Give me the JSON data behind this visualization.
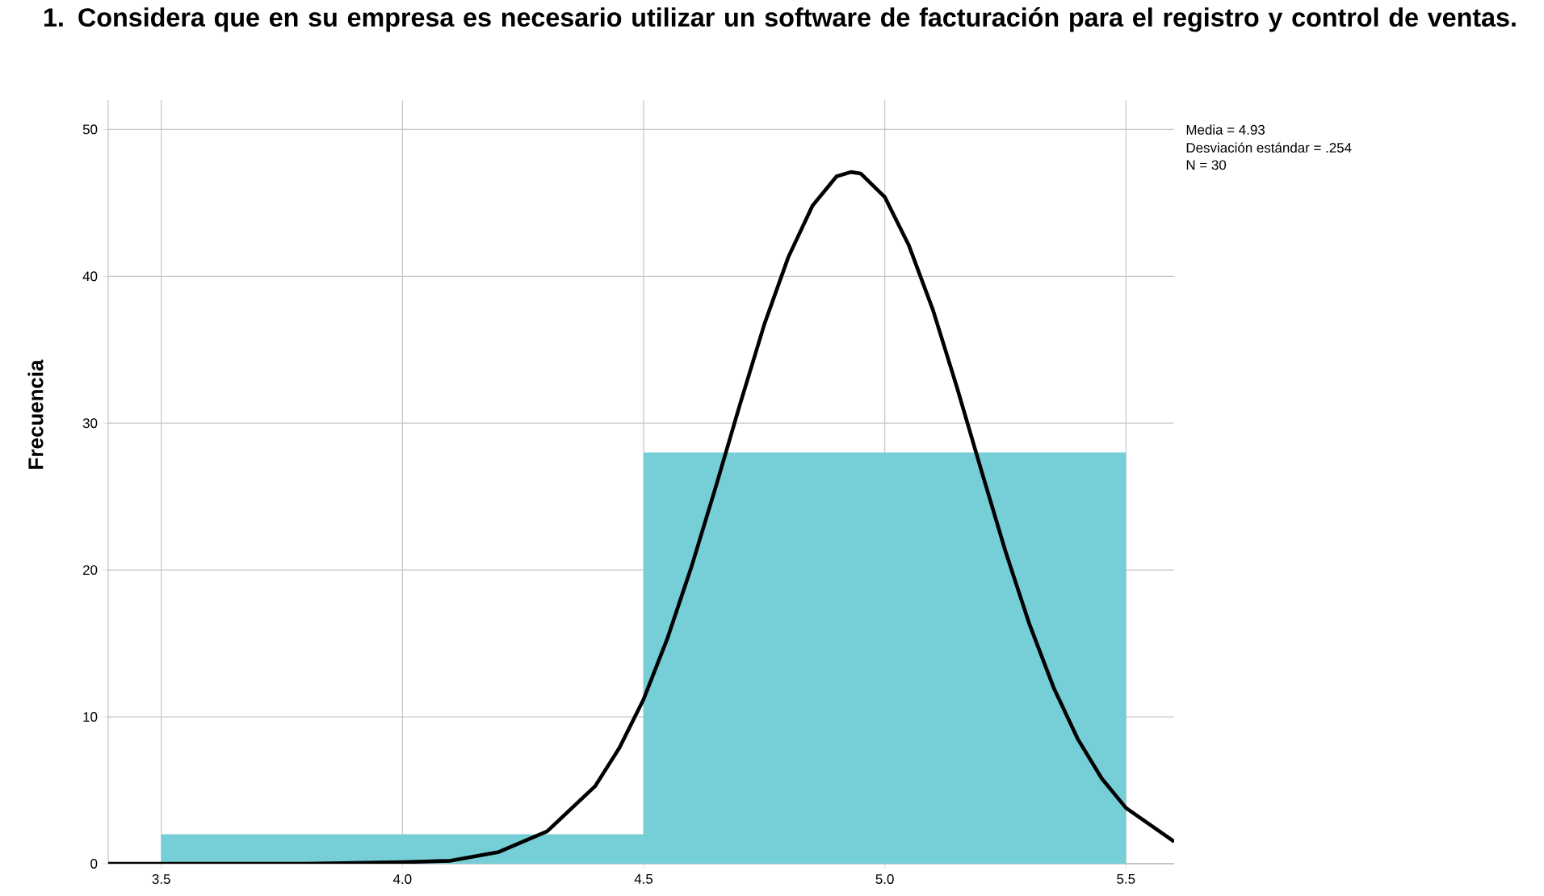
{
  "chart_data": {
    "type": "histogram",
    "title": "1. Considera que en su empresa es necesario utilizar un software de facturación para el registro y control de ventas.",
    "ylabel": "Frecuencia",
    "annotations": [
      "Media = 4.93",
      "Desviación estándar = .254",
      "N = 30"
    ],
    "bins": [
      3.5,
      4.5,
      5.5
    ],
    "values": [
      2,
      28
    ],
    "color": "#76ced6",
    "series": [
      {
        "type": "line",
        "color": "#000000",
        "x": [
          3.39,
          3.6,
          3.8,
          4.0,
          4.1,
          4.2,
          4.3,
          4.4,
          4.45,
          4.5,
          4.55,
          4.6,
          4.65,
          4.7,
          4.75,
          4.8,
          4.85,
          4.9,
          4.93,
          4.95,
          5.0,
          5.05,
          5.1,
          5.15,
          5.2,
          5.25,
          5.3,
          5.35,
          5.4,
          5.45,
          5.5,
          5.6
        ],
        "values": [
          0,
          0,
          0,
          0.1,
          0.2,
          0.8,
          2.2,
          5.3,
          7.9,
          11.2,
          15.4,
          20.3,
          25.7,
          31.3,
          36.7,
          41.3,
          44.8,
          46.8,
          47.1,
          47.0,
          45.4,
          42.1,
          37.7,
          32.4,
          26.8,
          21.3,
          16.3,
          12.0,
          8.5,
          5.8,
          3.8,
          1.5
        ]
      }
    ],
    "xlim": [
      3.39,
      5.6
    ],
    "ylim": [
      0,
      52
    ],
    "xticks": [
      3.5,
      {
        "value": 4,
        "label": "4.0"
      },
      4.5,
      {
        "value": 5,
        "label": "5.0"
      },
      5.5
    ],
    "yticks": [
      0,
      10,
      20,
      30,
      40,
      50
    ],
    "grid": true
  }
}
